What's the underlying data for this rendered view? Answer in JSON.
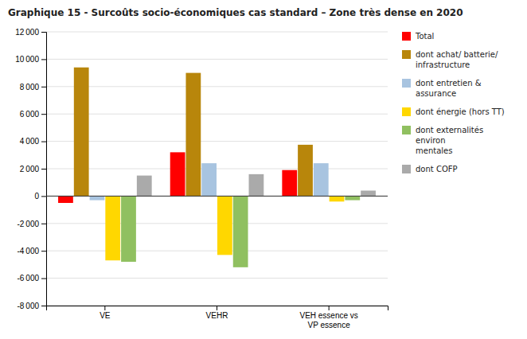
{
  "chart_data": {
    "type": "bar",
    "title": "Graphique 15 - Surcoûts socio-économiques cas standard – Zone très dense en 2020",
    "categories": [
      "VE",
      "VEHR",
      "VEH essence vs\nVP essence"
    ],
    "series": [
      {
        "name": "Total",
        "color": "#FF0000",
        "values": [
          -500,
          3200,
          1900
        ]
      },
      {
        "name": "dont achat/ batterie/\ninfrastructure",
        "color": "#B8860B",
        "values": [
          9400,
          9000,
          3750
        ]
      },
      {
        "name": "dont entretien &\nassurance",
        "color": "#A8C4E0",
        "values": [
          -300,
          2400,
          2400
        ]
      },
      {
        "name": "dont énergie (hors TT)",
        "color": "#FFD700",
        "values": [
          -4700,
          -4300,
          -400
        ]
      },
      {
        "name": "dont externalités\nenviron\nmentales",
        "color": "#90C060",
        "values": [
          -4800,
          -5200,
          -300
        ]
      },
      {
        "name": "dont COFP",
        "color": "#AAAAAA",
        "values": [
          1500,
          1600,
          400
        ]
      }
    ],
    "ylim": [
      -8000,
      12000
    ],
    "yticks": [
      {
        "value": -8000,
        "label": "-8 000"
      },
      {
        "value": -6000,
        "label": "-6 000"
      },
      {
        "value": -4000,
        "label": "-4 000"
      },
      {
        "value": -2000,
        "label": "-2 000"
      },
      0,
      {
        "value": 2000,
        "label": "2 000"
      },
      {
        "value": 4000,
        "label": "4 000"
      },
      {
        "value": 6000,
        "label": "6 000"
      },
      {
        "value": 8000,
        "label": "8 000"
      },
      {
        "value": 10000,
        "label": "10 000"
      },
      {
        "value": 12000,
        "label": "12 000"
      }
    ],
    "grid": true,
    "legend": "right"
  }
}
